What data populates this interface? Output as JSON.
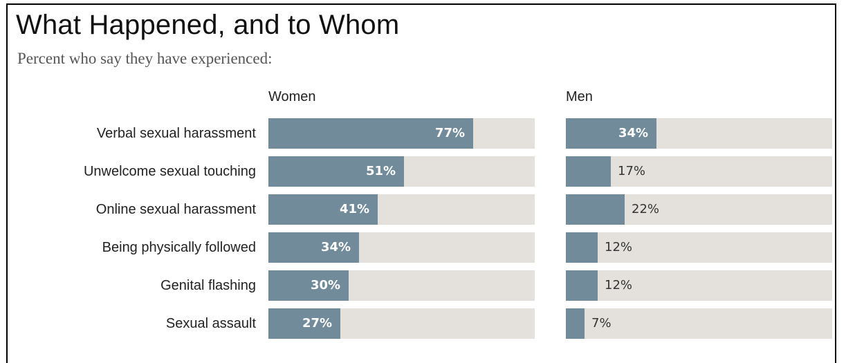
{
  "chart_data": {
    "type": "bar",
    "title": "What Happened, and to Whom",
    "subtitle": "Percent who say they have experienced:",
    "categories": [
      "Verbal sexual harassment",
      "Unwelcome sexual touching",
      "Online sexual harassment",
      "Being physically followed",
      "Genital flashing",
      "Sexual assault"
    ],
    "xlim": [
      0,
      100
    ],
    "panels": [
      {
        "name": "Women",
        "values": [
          77,
          51,
          41,
          34,
          30,
          27
        ],
        "labels": [
          "77%",
          "51%",
          "41%",
          "34%",
          "30%",
          "27%"
        ],
        "label_position": [
          "inside",
          "inside",
          "inside",
          "inside",
          "inside",
          "inside"
        ]
      },
      {
        "name": "Men",
        "values": [
          34,
          17,
          22,
          12,
          12,
          7
        ],
        "labels": [
          "34%",
          "17%",
          "22%",
          "12%",
          "12%",
          "7%"
        ],
        "label_position": [
          "inside",
          "outside",
          "outside",
          "outside",
          "outside",
          "outside"
        ]
      }
    ],
    "colors": {
      "fill": "#728b9b",
      "track": "#e4e1dd"
    }
  }
}
